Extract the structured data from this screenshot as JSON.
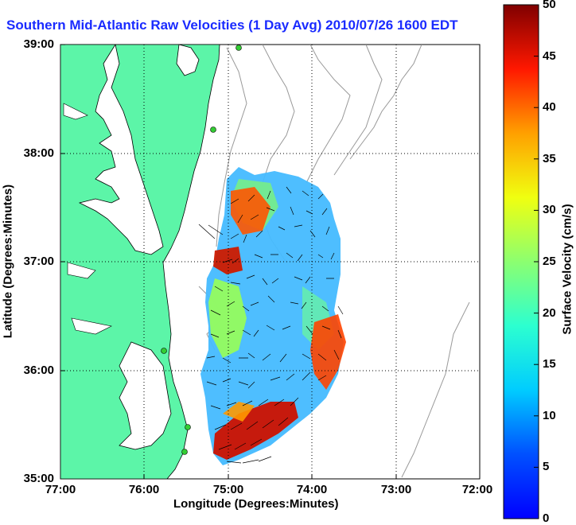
{
  "title": "Southern Mid-Atlantic Raw Velocities (1 Day Avg) 2010/07/26 1600 EDT",
  "x_axis": {
    "label": "Longitude (Degrees:Minutes)",
    "ticks": [
      "77:00",
      "76:00",
      "75:00",
      "74:00",
      "73:00",
      "72:00"
    ]
  },
  "y_axis": {
    "label": "Latitude (Degrees:Minutes)",
    "ticks": [
      "39:00",
      "38:00",
      "37:00",
      "36:00",
      "35:00"
    ]
  },
  "colorbar": {
    "label": "Surface Velocity (cm/s)",
    "ticks": [
      "50",
      "45",
      "40",
      "35",
      "30",
      "25",
      "20",
      "15",
      "10",
      "5",
      "0"
    ],
    "range": [
      0,
      50
    ],
    "colormap": "jet"
  },
  "colors": {
    "title": "#1a2bff",
    "land": "#5cf5a8",
    "coast": "#000000",
    "bathymetry": "#999999",
    "station": "#33cc33"
  },
  "map": {
    "lon_range": [
      "77:00",
      "72:00"
    ],
    "lat_range": [
      "35:00",
      "39:00"
    ],
    "grid": "dotted",
    "site_markers": 5
  }
}
